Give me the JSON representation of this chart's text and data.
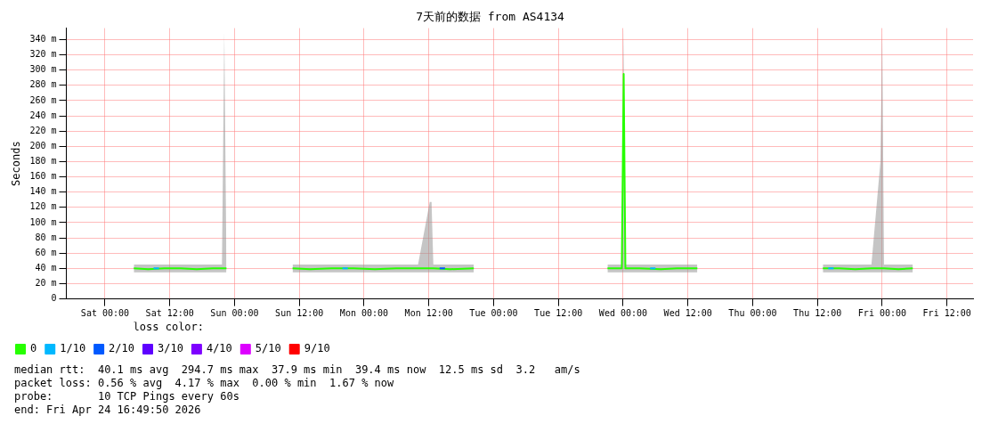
{
  "chart_data": {
    "type": "line",
    "title": "7天前的数据 from AS4134",
    "ylabel": "Seconds",
    "xlim": [
      "2026-04-17T16:50",
      "2026-04-24T16:50"
    ],
    "xticks": [
      {
        "value": "2026-04-18T00:00",
        "label": "Sat 00:00"
      },
      {
        "value": "2026-04-18T12:00",
        "label": "Sat 12:00"
      },
      {
        "value": "2026-04-19T00:00",
        "label": "Sun 00:00"
      },
      {
        "value": "2026-04-19T12:00",
        "label": "Sun 12:00"
      },
      {
        "value": "2026-04-20T00:00",
        "label": "Mon 00:00"
      },
      {
        "value": "2026-04-20T12:00",
        "label": "Mon 12:00"
      },
      {
        "value": "2026-04-21T00:00",
        "label": "Tue 00:00"
      },
      {
        "value": "2026-04-21T12:00",
        "label": "Tue 12:00"
      },
      {
        "value": "2026-04-22T00:00",
        "label": "Wed 00:00"
      },
      {
        "value": "2026-04-22T12:00",
        "label": "Wed 12:00"
      },
      {
        "value": "2026-04-23T00:00",
        "label": "Thu 00:00"
      },
      {
        "value": "2026-04-23T12:00",
        "label": "Thu 12:00"
      },
      {
        "value": "2026-04-24T00:00",
        "label": "Fri 00:00"
      },
      {
        "value": "2026-04-24T12:00",
        "label": "Fri 12:00"
      }
    ],
    "ylim": [
      0,
      355
    ],
    "yticks": [
      0,
      {
        "value": 20,
        "label": "20 m"
      },
      {
        "value": 40,
        "label": "40 m"
      },
      {
        "value": 60,
        "label": "60 m"
      },
      {
        "value": 80,
        "label": "80 m"
      },
      {
        "value": 100,
        "label": "100 m"
      },
      {
        "value": 120,
        "label": "120 m"
      },
      {
        "value": 140,
        "label": "140 m"
      },
      {
        "value": 160,
        "label": "160 m"
      },
      {
        "value": 180,
        "label": "180 m"
      },
      {
        "value": 200,
        "label": "200 m"
      },
      {
        "value": 220,
        "label": "220 m"
      },
      {
        "value": 240,
        "label": "240 m"
      },
      {
        "value": 260,
        "label": "260 m"
      },
      {
        "value": 280,
        "label": "280 m"
      },
      {
        "value": 300,
        "label": "300 m"
      },
      {
        "value": 320,
        "label": "320 m"
      },
      {
        "value": 340,
        "label": "340 m"
      }
    ],
    "grid": true,
    "legend": "bottom",
    "legend_title": "loss color:",
    "marker": "none",
    "line_style": "solid",
    "series": [
      {
        "name": "0",
        "color": "#26ff00",
        "x": [
          "2026-04-18T05:20",
          "2026-04-18T08:00",
          "2026-04-18T11:00",
          "2026-04-18T14:00",
          "2026-04-18T17:00",
          "2026-04-18T20:00",
          "2026-04-18T21:40",
          "2026-04-18T22:06",
          "2026-04-18T22:30",
          "2026-04-19T04:00",
          "2026-04-19T10:45",
          "2026-04-19T14:00",
          "2026-04-19T18:00",
          "2026-04-19T22:00",
          "2026-04-20T02:00",
          "2026-04-20T06:00",
          "2026-04-20T10:00",
          "2026-04-20T12:10",
          "2026-04-20T12:30",
          "2026-04-20T12:50",
          "2026-04-20T16:00",
          "2026-04-20T20:20",
          "2026-04-21T08:00",
          "2026-04-21T21:06",
          "2026-04-21T23:00",
          "2026-04-21T23:45",
          "2026-04-22T00:06",
          "2026-04-22T00:25",
          "2026-04-22T03:00",
          "2026-04-22T07:00",
          "2026-04-22T10:00",
          "2026-04-22T13:45",
          "2026-04-23T01:00",
          "2026-04-23T13:00",
          "2026-04-23T16:00",
          "2026-04-23T19:00",
          "2026-04-23T22:00",
          "2026-04-23T23:40",
          "2026-04-24T00:00",
          "2026-04-24T00:20",
          "2026-04-24T03:00",
          "2026-04-24T05:40"
        ],
        "values": [
          40,
          39,
          40,
          40,
          39,
          40,
          40,
          40,
          40,
          null,
          40,
          39,
          40,
          40,
          39,
          40,
          40,
          40,
          40,
          40,
          39,
          40,
          null,
          40,
          40,
          40,
          295,
          40,
          40,
          39,
          40,
          40,
          null,
          40,
          40,
          39,
          40,
          40,
          40,
          40,
          39,
          40
        ],
        "lower": [
          35,
          35,
          35,
          35,
          35,
          35,
          35,
          35,
          35,
          null,
          35,
          35,
          35,
          35,
          35,
          35,
          35,
          35,
          35,
          35,
          35,
          35,
          null,
          35,
          35,
          35,
          35,
          35,
          35,
          35,
          35,
          35,
          null,
          35,
          35,
          35,
          35,
          35,
          35,
          35,
          35,
          35
        ],
        "upper": [
          45,
          45,
          45,
          45,
          45,
          45,
          45,
          350,
          45,
          null,
          45,
          45,
          45,
          45,
          45,
          45,
          45,
          127,
          127,
          45,
          45,
          45,
          null,
          45,
          45,
          45,
          355,
          45,
          45,
          45,
          45,
          45,
          null,
          45,
          45,
          45,
          45,
          180,
          350,
          45,
          45,
          45
        ]
      },
      {
        "name": "1/10",
        "color": "#00b8ff",
        "x": [
          "2026-04-18T09:00",
          "2026-04-18T10:00",
          "2026-04-18T11:00",
          "2026-04-19T20:00",
          "2026-04-19T21:00",
          "2026-04-19T22:00",
          "2026-04-22T05:00",
          "2026-04-22T06:00",
          "2026-04-22T07:00",
          "2026-04-23T14:00",
          "2026-04-23T15:00"
        ],
        "values": [
          40,
          40,
          null,
          40,
          40,
          null,
          40,
          40,
          null,
          40,
          40
        ]
      },
      {
        "name": "2/10",
        "color": "#0059ff",
        "x": [
          "2026-04-20T14:00",
          "2026-04-20T15:00"
        ],
        "values": [
          40,
          40
        ]
      },
      {
        "name": "3/10",
        "color": "#5e00ff"
      },
      {
        "name": "4/10",
        "color": "#7e00ff"
      },
      {
        "name": "5/10",
        "color": "#dd00ff"
      },
      {
        "name": "9/10",
        "color": "#ff0000"
      }
    ],
    "annotations": [
      "median rtt:  40.1 ms avg  294.7 ms max  37.9 ms min  39.4 ms now  12.5 ms sd  3.2   am/s",
      "packet loss: 0.56 % avg  4.17 % max  0.00 % min  1.67 % now",
      "probe:       10 TCP Pings every 60s",
      "end: Fri Apr 24 16:49:50 2026"
    ]
  }
}
